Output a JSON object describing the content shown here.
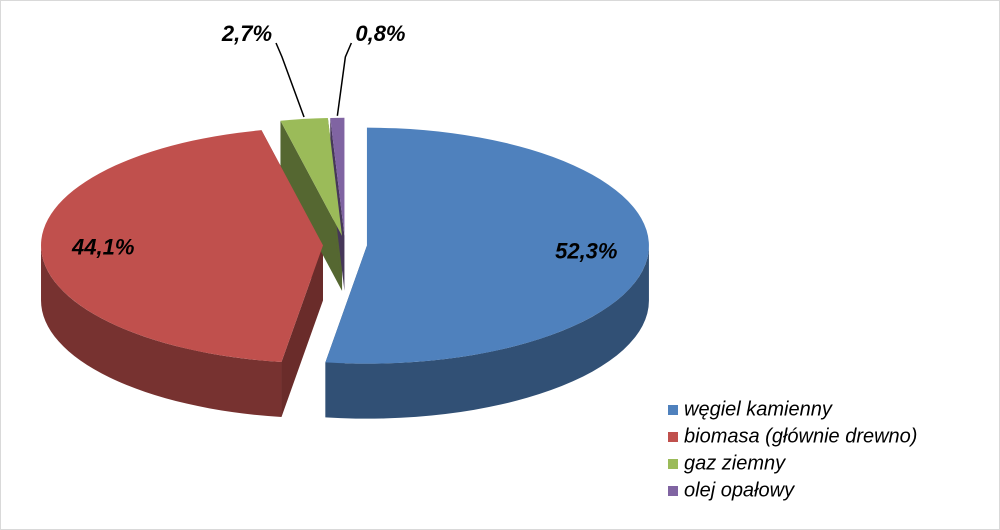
{
  "chart_data": {
    "type": "pie",
    "categories": [
      "węgiel kamienny",
      "biomasa (głównie drewno)",
      "gaz ziemny",
      "olej opałowy"
    ],
    "values": [
      52.3,
      44.1,
      2.7,
      0.8
    ],
    "value_labels": [
      "52,3%",
      "44,1%",
      "2,7%",
      "0,8%"
    ],
    "colors": [
      "#4f81bd",
      "#c0504d",
      "#9bbb59",
      "#8064a2"
    ],
    "legend": "bottom-right"
  }
}
